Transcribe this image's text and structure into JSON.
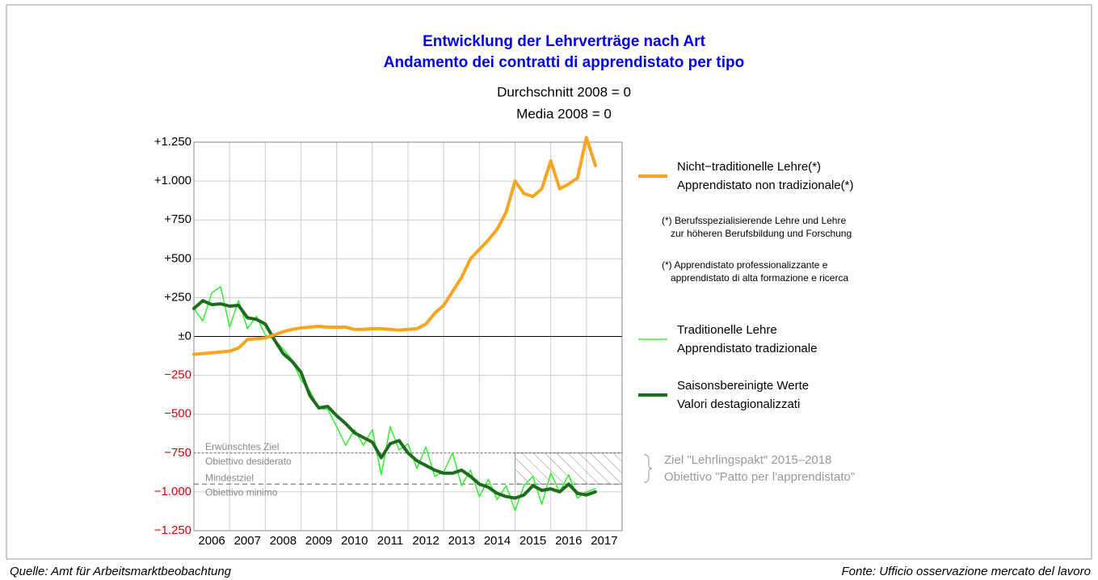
{
  "chart_data": {
    "type": "line",
    "title": [
      "Entwicklung der Lehrverträge nach Art",
      "Andamento dei contratti di apprendistato per tipo"
    ],
    "subtitle": [
      "Durchschnitt 2008 = 0",
      "Media 2008 = 0"
    ],
    "x": [
      2006,
      2006.25,
      2006.5,
      2006.75,
      2007,
      2007.25,
      2007.5,
      2007.75,
      2008,
      2008.25,
      2008.5,
      2008.75,
      2009,
      2009.25,
      2009.5,
      2009.75,
      2010,
      2010.25,
      2010.5,
      2010.75,
      2011,
      2011.25,
      2011.5,
      2011.75,
      2012,
      2012.25,
      2012.5,
      2012.75,
      2013,
      2013.25,
      2013.5,
      2013.75,
      2014,
      2014.25,
      2014.5,
      2014.75,
      2015,
      2015.25,
      2015.5,
      2015.75,
      2016,
      2016.25,
      2016.5,
      2016.75,
      2017,
      2017.25
    ],
    "series": [
      {
        "name": [
          "Nicht−traditionelle Lehre(*)",
          "Apprendistato non tradizionale(*)"
        ],
        "color": "#f7a520",
        "width": 4,
        "values": [
          -115,
          -110,
          -105,
          -100,
          -95,
          -75,
          -20,
          -15,
          -10,
          10,
          30,
          45,
          55,
          60,
          65,
          60,
          60,
          60,
          45,
          45,
          50,
          50,
          45,
          40,
          45,
          50,
          80,
          150,
          200,
          290,
          380,
          500,
          560,
          620,
          690,
          800,
          1000,
          920,
          900,
          950,
          1130,
          950,
          980,
          1020,
          1280,
          1100
        ]
      },
      {
        "name": [
          "Traditionelle Lehre",
          "Apprendistato tradizionale"
        ],
        "color": "#33ee33",
        "width": 1.5,
        "values": [
          180,
          100,
          280,
          320,
          60,
          230,
          50,
          130,
          10,
          -20,
          -80,
          -150,
          -280,
          -350,
          -460,
          -470,
          -580,
          -700,
          -600,
          -700,
          -600,
          -890,
          -580,
          -730,
          -690,
          -850,
          -710,
          -900,
          -870,
          -750,
          -960,
          -860,
          -1030,
          -920,
          -1050,
          -960,
          -1120,
          -960,
          -900,
          -1080,
          -880,
          -1000,
          -890,
          -1040,
          -1000,
          -980
        ]
      },
      {
        "name": [
          "Saisonsbereinigte Werte",
          "Valori destagionalizzati"
        ],
        "color": "#1d6b1d",
        "width": 4,
        "values": [
          180,
          230,
          205,
          210,
          195,
          200,
          120,
          110,
          80,
          -20,
          -110,
          -160,
          -230,
          -380,
          -460,
          -450,
          -510,
          -560,
          -620,
          -650,
          -680,
          -780,
          -690,
          -670,
          -750,
          -800,
          -830,
          -860,
          -880,
          -880,
          -860,
          -900,
          -950,
          -970,
          -1010,
          -1030,
          -1040,
          -1020,
          -960,
          -990,
          -980,
          -1000,
          -950,
          -1010,
          -1020,
          -1000
        ]
      }
    ],
    "xlim": [
      2006,
      2018
    ],
    "xgrid": [
      2006,
      2007,
      2008,
      2009,
      2010,
      2011,
      2012,
      2013,
      2014,
      2015,
      2016,
      2017,
      2018
    ],
    "xticks": [
      {
        "value": 2006.5,
        "label": "2006"
      },
      {
        "value": 2007.5,
        "label": "2007"
      },
      {
        "value": 2008.5,
        "label": "2008"
      },
      {
        "value": 2009.5,
        "label": "2009"
      },
      {
        "value": 2010.5,
        "label": "2010"
      },
      {
        "value": 2011.5,
        "label": "2011"
      },
      {
        "value": 2012.5,
        "label": "2012"
      },
      {
        "value": 2013.5,
        "label": "2013"
      },
      {
        "value": 2014.5,
        "label": "2014"
      },
      {
        "value": 2015.5,
        "label": "2015"
      },
      {
        "value": 2016.5,
        "label": "2016"
      },
      {
        "value": 2017.5,
        "label": "2017"
      }
    ],
    "ylim": [
      -1250,
      1250
    ],
    "yticks": [
      {
        "value": 1250,
        "label": "+1.250"
      },
      {
        "value": 1000,
        "label": "+1.000"
      },
      {
        "value": 750,
        "label": "+750"
      },
      {
        "value": 500,
        "label": "+500"
      },
      {
        "value": 250,
        "label": "+250"
      },
      {
        "value": 0,
        "label": "±0"
      },
      {
        "value": -250,
        "label": "−250"
      },
      {
        "value": -500,
        "label": "−500"
      },
      {
        "value": -750,
        "label": "−750"
      },
      {
        "value": -1000,
        "label": "−1.000"
      },
      {
        "value": -1250,
        "label": "−1.250"
      }
    ],
    "negative_tick_color": "#e00000",
    "grid": true,
    "reference_lines": [
      {
        "value": -750,
        "style": "dotted",
        "labels": [
          "Erwünschtes Ziel",
          "Obiettivo desiderato"
        ]
      },
      {
        "value": -950,
        "style": "dashed",
        "labels": [
          "Mindestziel",
          "Obiettivo minimo"
        ]
      }
    ],
    "target_zone": {
      "x": [
        2015,
        2018
      ],
      "y": [
        -950,
        -750
      ],
      "labels": [
        "Ziel \"Lehrlingspakt\" 2015–2018",
        "Obiettivo \"Patto per l'apprendistato\""
      ]
    },
    "notes": [
      [
        "(*) Berufsspezialisierende Lehre und Lehre",
        "zur höheren Berufsbildung und Forschung"
      ],
      [
        "(*) Apprendistato professionalizzante e",
        "apprendistato di alta formazione e ricerca"
      ]
    ],
    "source_left": "Quelle: Amt für Arbeitsmarktbeobachtung",
    "source_right": "Fonte: Ufficio osservazione mercato del lavoro"
  }
}
